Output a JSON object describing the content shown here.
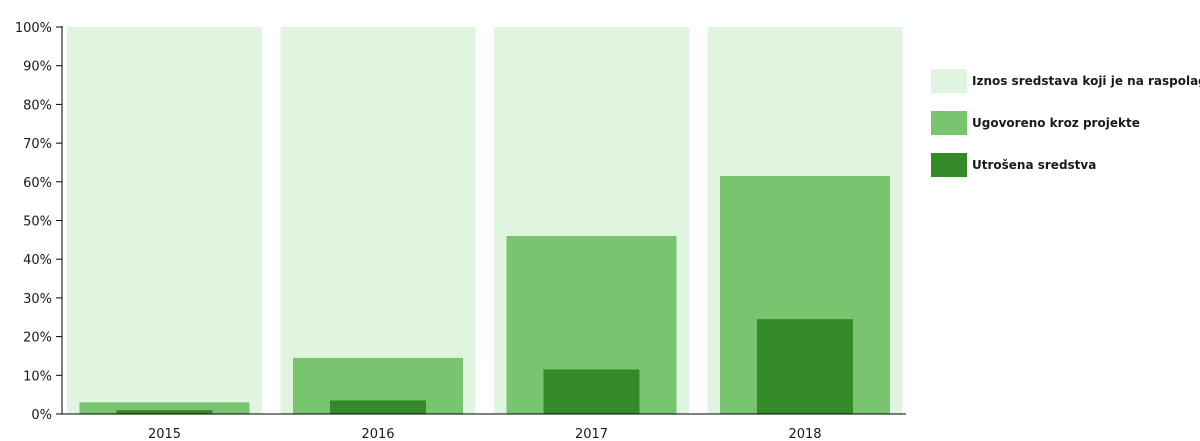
{
  "chart_data": {
    "type": "bar",
    "categories": [
      "2015",
      "2016",
      "2017",
      "2018"
    ],
    "series": [
      {
        "name": "Iznos sredstava koji je na raspolaganju",
        "values": [
          100,
          100,
          100,
          100
        ],
        "color": "#dff5e0"
      },
      {
        "name": "Ugovoreno kroz projekte",
        "values": [
          3,
          14.5,
          46,
          61.5
        ],
        "color": "#79c56f"
      },
      {
        "name": "Utrošena sredstva",
        "values": [
          1,
          3.5,
          11.5,
          24.5
        ],
        "color": "#348a28"
      }
    ],
    "yticks": [
      "0%",
      "10%",
      "20%",
      "30%",
      "40%",
      "50%",
      "60%",
      "70%",
      "80%",
      "90%",
      "100%"
    ],
    "ylim": [
      0,
      100
    ],
    "grid": false,
    "legend_position": "right",
    "title": "",
    "xlabel": "",
    "ylabel": ""
  }
}
